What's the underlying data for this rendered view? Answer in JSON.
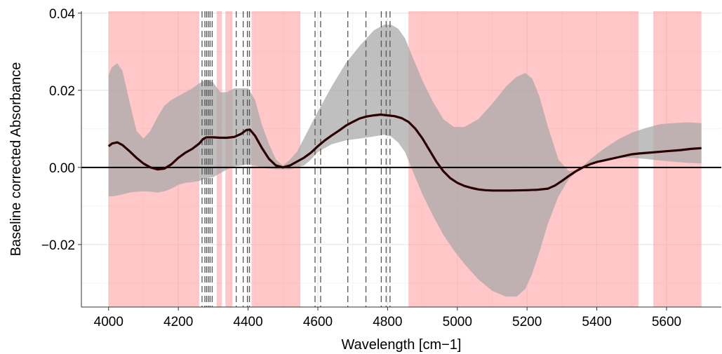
{
  "chart_data": {
    "type": "line",
    "title": "",
    "xlabel": "Wavelength [cm−1]",
    "ylabel": "Baseline corrected Absorbance",
    "xlim": [
      3922,
      5757
    ],
    "ylim": [
      -0.0362,
      0.0405
    ],
    "x_ticks": [
      4000,
      4200,
      4400,
      4600,
      4800,
      5000,
      5200,
      5400,
      5600
    ],
    "x_tick_labels": [
      "4000",
      "4200",
      "4400",
      "4600",
      "4800",
      "5000",
      "5200",
      "5400",
      "5600"
    ],
    "y_ticks": [
      -0.02,
      0.0,
      0.02,
      0.04
    ],
    "y_tick_labels": [
      "−0.02",
      "0.00",
      "0.02",
      "0.04"
    ],
    "grid": true,
    "reference_line_y": 0,
    "highlighted_regions": [
      [
        4000,
        4260
      ],
      [
        4310,
        4325
      ],
      [
        4335,
        4355
      ],
      [
        4410,
        4550
      ],
      [
        4860,
        5520
      ],
      [
        5562,
        5700
      ]
    ],
    "selected_wavelengths": [
      4268,
      4276,
      4281,
      4286,
      4291,
      4297,
      4366,
      4386,
      4398,
      4404,
      4592,
      4608,
      4686,
      4738,
      4782,
      4796,
      4807
    ],
    "series": [
      {
        "role": "mean",
        "color": "#2a0000",
        "x": [
          4000,
          4010,
          4025,
          4040,
          4060,
          4080,
          4100,
          4120,
          4140,
          4160,
          4180,
          4200,
          4220,
          4240,
          4260,
          4270,
          4280,
          4300,
          4320,
          4340,
          4360,
          4380,
          4395,
          4405,
          4420,
          4440,
          4460,
          4480,
          4500,
          4520,
          4540,
          4560,
          4580,
          4600,
          4620,
          4640,
          4660,
          4680,
          4700,
          4720,
          4740,
          4760,
          4780,
          4800,
          4820,
          4840,
          4860,
          4880,
          4900,
          4920,
          4940,
          4960,
          4980,
          5000,
          5020,
          5040,
          5060,
          5080,
          5100,
          5150,
          5200,
          5230,
          5260,
          5280,
          5300,
          5320,
          5340,
          5360,
          5380,
          5400,
          5420,
          5440,
          5460,
          5480,
          5500,
          5520,
          5560,
          5600,
          5640,
          5670,
          5700
        ],
        "y": [
          0.0055,
          0.0062,
          0.0065,
          0.0058,
          0.0042,
          0.0025,
          0.001,
          0.0,
          -0.0005,
          -0.0003,
          0.0008,
          0.0025,
          0.0038,
          0.0048,
          0.0062,
          0.0073,
          0.0078,
          0.0078,
          0.0077,
          0.0077,
          0.0079,
          0.0087,
          0.0097,
          0.0098,
          0.0082,
          0.005,
          0.0022,
          0.0005,
          0.0,
          0.0005,
          0.0015,
          0.0025,
          0.0038,
          0.0055,
          0.007,
          0.0083,
          0.0095,
          0.0108,
          0.0118,
          0.0127,
          0.0132,
          0.0135,
          0.0137,
          0.0135,
          0.0133,
          0.0128,
          0.0118,
          0.01,
          0.0075,
          0.0045,
          0.0015,
          -0.001,
          -0.0028,
          -0.004,
          -0.0048,
          -0.0053,
          -0.0057,
          -0.0059,
          -0.006,
          -0.006,
          -0.0059,
          -0.0058,
          -0.0055,
          -0.0047,
          -0.0035,
          -0.0022,
          -0.001,
          0.0,
          0.0008,
          0.0014,
          0.0018,
          0.0022,
          0.0026,
          0.003,
          0.0034,
          0.0036,
          0.0039,
          0.0042,
          0.0045,
          0.0048,
          0.005
        ]
      },
      {
        "role": "range",
        "color": "#a9a9a9",
        "x": [
          4000,
          4010,
          4025,
          4040,
          4060,
          4080,
          4100,
          4120,
          4140,
          4160,
          4180,
          4200,
          4220,
          4240,
          4260,
          4280,
          4300,
          4320,
          4340,
          4360,
          4380,
          4400,
          4420,
          4440,
          4460,
          4480,
          4500,
          4520,
          4540,
          4560,
          4580,
          4600,
          4640,
          4680,
          4720,
          4760,
          4790,
          4810,
          4830,
          4850,
          4870,
          4900,
          4930,
          4960,
          4990,
          5020,
          5060,
          5100,
          5140,
          5170,
          5195,
          5215,
          5235,
          5260,
          5290,
          5320,
          5350,
          5380,
          5420,
          5460,
          5500,
          5540,
          5580,
          5620,
          5660,
          5700
        ],
        "upper": [
          0.024,
          0.026,
          0.027,
          0.025,
          0.017,
          0.0095,
          0.0075,
          0.0095,
          0.013,
          0.016,
          0.0175,
          0.0185,
          0.0195,
          0.0205,
          0.0218,
          0.0228,
          0.022,
          0.0195,
          0.0195,
          0.0205,
          0.0205,
          0.0205,
          0.0175,
          0.011,
          0.006,
          0.002,
          0.0005,
          0.002,
          0.004,
          0.0075,
          0.011,
          0.0145,
          0.021,
          0.027,
          0.0315,
          0.0355,
          0.037,
          0.037,
          0.036,
          0.0335,
          0.029,
          0.0225,
          0.017,
          0.0125,
          0.0105,
          0.0105,
          0.0125,
          0.0165,
          0.021,
          0.0235,
          0.0245,
          0.023,
          0.0185,
          0.0105,
          0.002,
          -0.001,
          -0.0005,
          0.002,
          0.0048,
          0.0072,
          0.009,
          0.0102,
          0.0112,
          0.0115,
          0.0117,
          0.0115
        ],
        "lower": [
          -0.0075,
          -0.0075,
          -0.0073,
          -0.007,
          -0.0065,
          -0.0063,
          -0.0062,
          -0.0063,
          -0.0065,
          -0.0062,
          -0.0055,
          -0.0045,
          -0.004,
          -0.0038,
          -0.0035,
          -0.0028,
          -0.0025,
          -0.0015,
          -0.0005,
          0.0002,
          0.0005,
          0.0008,
          0.0005,
          0.0,
          -0.0003,
          -0.0005,
          -0.0005,
          -0.0005,
          0.0,
          0.0005,
          0.002,
          0.004,
          0.006,
          0.007,
          0.0075,
          0.008,
          0.0085,
          0.008,
          0.0065,
          0.004,
          -0.0005,
          -0.007,
          -0.0125,
          -0.0175,
          -0.0215,
          -0.025,
          -0.029,
          -0.032,
          -0.0335,
          -0.0335,
          -0.0315,
          -0.0275,
          -0.022,
          -0.0145,
          -0.0075,
          -0.003,
          -0.0005,
          0.001,
          0.002,
          0.0025,
          0.0025,
          0.0022,
          0.0018,
          0.0015,
          0.0012,
          0.001
        ]
      }
    ]
  }
}
